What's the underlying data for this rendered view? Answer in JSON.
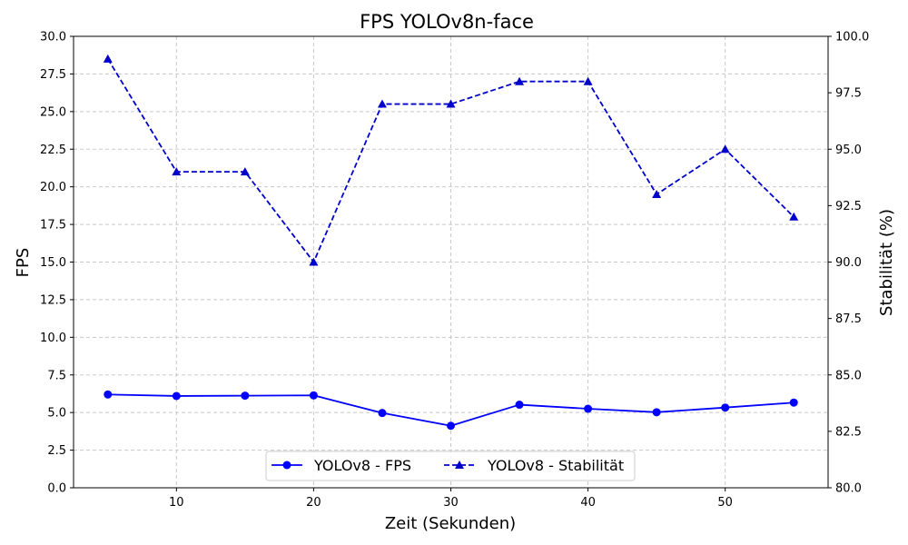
{
  "chart_data": {
    "type": "line",
    "title": "FPS YOLOv8n-face",
    "xlabel": "Zeit (Sekunden)",
    "ylabel": "FPS",
    "ylabel_right": "Stabilität (%)",
    "x": [
      5,
      10,
      15,
      20,
      25,
      30,
      35,
      40,
      45,
      50,
      55
    ],
    "xlim": [
      2.5,
      57.5
    ],
    "ylim": [
      0,
      30
    ],
    "ylim_right": [
      80,
      100
    ],
    "x_ticks": [
      "10",
      "20",
      "30",
      "40",
      "50"
    ],
    "y_ticks": [
      "0.0",
      "2.5",
      "5.0",
      "7.5",
      "10.0",
      "12.5",
      "15.0",
      "17.5",
      "20.0",
      "22.5",
      "25.0",
      "27.5",
      "30.0"
    ],
    "y_ticks_right": [
      "80.0",
      "82.5",
      "85.0",
      "87.5",
      "90.0",
      "92.5",
      "95.0",
      "97.5",
      "100.0"
    ],
    "grid": true,
    "legend_position": "bottom-center",
    "series": [
      {
        "name": "YOLOv8 - FPS",
        "axis": "left",
        "style": "solid",
        "marker": "circle",
        "color": "#0000ff",
        "values": [
          6.2,
          6.1,
          6.12,
          6.14,
          4.97,
          4.12,
          5.52,
          5.25,
          5.02,
          5.33,
          5.66
        ]
      },
      {
        "name": "YOLOv8 - Stabilität",
        "axis": "right",
        "style": "dashed",
        "marker": "triangle",
        "color": "#0000cd",
        "values": [
          99,
          94,
          94,
          90,
          97,
          97,
          98,
          98,
          93,
          95,
          92
        ]
      }
    ]
  }
}
